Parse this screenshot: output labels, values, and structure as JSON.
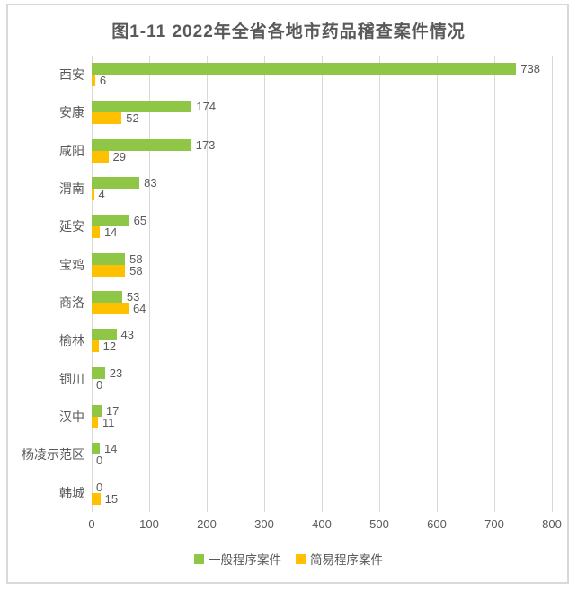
{
  "chart": {
    "title": "图1-11  2022年全省各地市药品稽查案件情况"
  },
  "chart_data": {
    "type": "bar",
    "orientation": "horizontal",
    "title": "图1-11  2022年全省各地市药品稽查案件情况",
    "categories": [
      "西安",
      "安康",
      "咸阳",
      "渭南",
      "延安",
      "宝鸡",
      "商洛",
      "榆林",
      "铜川",
      "汉中",
      "杨凌示范区",
      "韩城"
    ],
    "series": [
      {
        "name": "一般程序案件",
        "color": "#8fc646",
        "values": [
          738,
          174,
          173,
          83,
          65,
          58,
          53,
          43,
          23,
          17,
          14,
          0
        ]
      },
      {
        "name": "简易程序案件",
        "color": "#ffc000",
        "values": [
          6,
          52,
          29,
          4,
          14,
          58,
          64,
          12,
          0,
          11,
          0,
          15
        ]
      }
    ],
    "xlabel": "",
    "ylabel": "",
    "xlim": [
      0,
      800
    ],
    "x_ticks": [
      0,
      100,
      200,
      300,
      400,
      500,
      600,
      700,
      800
    ],
    "grid": true,
    "data_labels": true,
    "legend_position": "bottom",
    "colors": {
      "grid": "#d9d9d9",
      "text": "#595959",
      "border": "#d9d9d9",
      "background": "#ffffff"
    }
  }
}
